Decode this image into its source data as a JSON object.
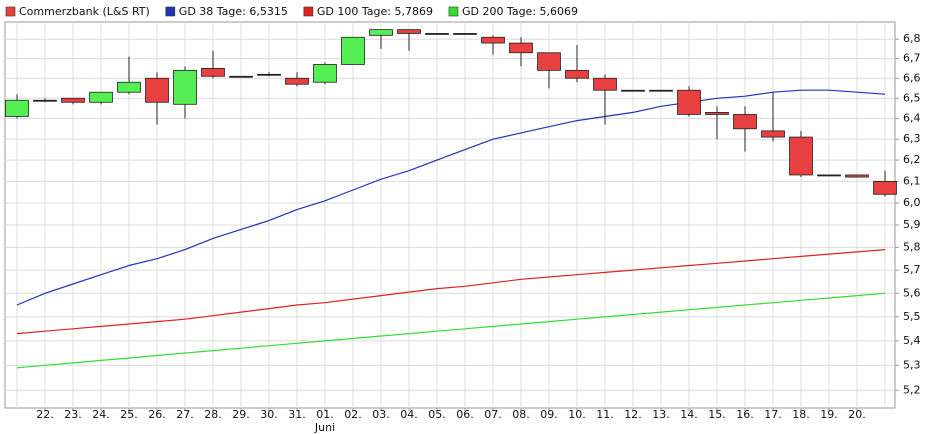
{
  "chart_data": {
    "type": "candlestick",
    "log_y": true,
    "grid": true,
    "legend_position": "top-left",
    "ylim": [
      5.13,
      6.89
    ],
    "yticks": [
      {
        "value": 5.2,
        "label": "5,2"
      },
      {
        "value": 5.3,
        "label": "5,3"
      },
      {
        "value": 5.4,
        "label": "5,4"
      },
      {
        "value": 5.5,
        "label": "5,5"
      },
      {
        "value": 5.6,
        "label": "5,6"
      },
      {
        "value": 5.7,
        "label": "5,7"
      },
      {
        "value": 5.8,
        "label": "5,8"
      },
      {
        "value": 5.9,
        "label": "5,9"
      },
      {
        "value": 6.0,
        "label": "6,0"
      },
      {
        "value": 6.1,
        "label": "6,1"
      },
      {
        "value": 6.2,
        "label": "6,2"
      },
      {
        "value": 6.3,
        "label": "6,3"
      },
      {
        "value": 6.4,
        "label": "6,4"
      },
      {
        "value": 6.5,
        "label": "6,5"
      },
      {
        "value": 6.6,
        "label": "6,6"
      },
      {
        "value": 6.7,
        "label": "6,7"
      },
      {
        "value": 6.8,
        "label": "6,8"
      }
    ],
    "categories": [
      null,
      "22.",
      "23.",
      "24.",
      "25.",
      "26.",
      "27.",
      "28.",
      "29.",
      "30.",
      "31.",
      "01.",
      "02.",
      "03.",
      "04.",
      "05.",
      "06.",
      "07.",
      "08.",
      "09.",
      "10.",
      "11.",
      "12.",
      "13.",
      "14.",
      "15.",
      "16.",
      "17.",
      "18.",
      "19.",
      "20.",
      null
    ],
    "x_sublabels": [
      null,
      null,
      null,
      null,
      null,
      null,
      null,
      null,
      null,
      null,
      null,
      "Juni",
      null,
      null,
      null,
      null,
      null,
      null,
      null,
      null,
      null,
      null,
      null,
      null,
      null,
      null,
      null,
      null,
      null,
      null,
      null,
      null
    ],
    "candles": {
      "name": "Commerzbank (L&S RT)",
      "color": "#e84040",
      "color_up": "#55ee55",
      "color_down": "#e84040",
      "open": [
        6.41,
        6.49,
        6.5,
        6.48,
        6.53,
        6.6,
        6.47,
        6.65,
        6.61,
        6.62,
        6.6,
        6.58,
        6.67,
        6.82,
        6.85,
        6.83,
        6.83,
        6.81,
        6.78,
        6.73,
        6.64,
        6.6,
        6.54,
        6.54,
        6.54,
        6.43,
        6.42,
        6.34,
        6.31,
        6.13,
        6.13,
        6.1
      ],
      "high": [
        6.52,
        6.5,
        6.5,
        6.53,
        6.71,
        6.63,
        6.66,
        6.74,
        6.61,
        6.63,
        6.63,
        6.68,
        6.81,
        6.85,
        6.85,
        6.83,
        6.83,
        6.82,
        6.81,
        6.73,
        6.77,
        6.62,
        6.54,
        6.54,
        6.56,
        6.46,
        6.46,
        6.53,
        6.34,
        6.13,
        6.13,
        6.15
      ],
      "low": [
        6.4,
        6.48,
        6.47,
        6.47,
        6.52,
        6.37,
        6.4,
        6.6,
        6.61,
        6.61,
        6.56,
        6.57,
        6.67,
        6.75,
        6.74,
        6.83,
        6.83,
        6.72,
        6.66,
        6.55,
        6.58,
        6.37,
        6.54,
        6.54,
        6.41,
        6.3,
        6.24,
        6.29,
        6.12,
        6.13,
        6.12,
        6.03
      ],
      "close": [
        6.49,
        6.49,
        6.48,
        6.53,
        6.58,
        6.48,
        6.64,
        6.61,
        6.61,
        6.62,
        6.57,
        6.67,
        6.81,
        6.85,
        6.83,
        6.83,
        6.83,
        6.78,
        6.73,
        6.64,
        6.6,
        6.54,
        6.54,
        6.54,
        6.42,
        6.42,
        6.35,
        6.31,
        6.13,
        6.13,
        6.12,
        6.04
      ]
    },
    "series": [
      {
        "name": "GD 38 Tage: 6,5315",
        "color": "#2233bb",
        "values": [
          5.55,
          5.6,
          5.64,
          5.68,
          5.72,
          5.75,
          5.79,
          5.84,
          5.88,
          5.92,
          5.97,
          6.01,
          6.06,
          6.11,
          6.15,
          6.2,
          6.25,
          6.3,
          6.33,
          6.36,
          6.39,
          6.41,
          6.43,
          6.46,
          6.48,
          6.5,
          6.51,
          6.53,
          6.54,
          6.54,
          6.53,
          6.52
        ]
      },
      {
        "name": "GD 100 Tage: 5,7869",
        "color": "#dd2222",
        "values": [
          5.43,
          5.44,
          5.45,
          5.46,
          5.47,
          5.48,
          5.49,
          5.505,
          5.52,
          5.535,
          5.55,
          5.56,
          5.575,
          5.59,
          5.605,
          5.62,
          5.63,
          5.645,
          5.66,
          5.67,
          5.68,
          5.69,
          5.7,
          5.71,
          5.72,
          5.73,
          5.74,
          5.75,
          5.76,
          5.77,
          5.78,
          5.79
        ]
      },
      {
        "name": "GD 200 Tage: 5,6069",
        "color": "#33dd33",
        "values": [
          5.29,
          5.3,
          5.31,
          5.32,
          5.33,
          5.34,
          5.35,
          5.36,
          5.37,
          5.38,
          5.39,
          5.4,
          5.41,
          5.42,
          5.43,
          5.44,
          5.45,
          5.46,
          5.47,
          5.48,
          5.49,
          5.5,
          5.51,
          5.52,
          5.53,
          5.54,
          5.55,
          5.56,
          5.57,
          5.58,
          5.59,
          5.6
        ]
      }
    ]
  }
}
